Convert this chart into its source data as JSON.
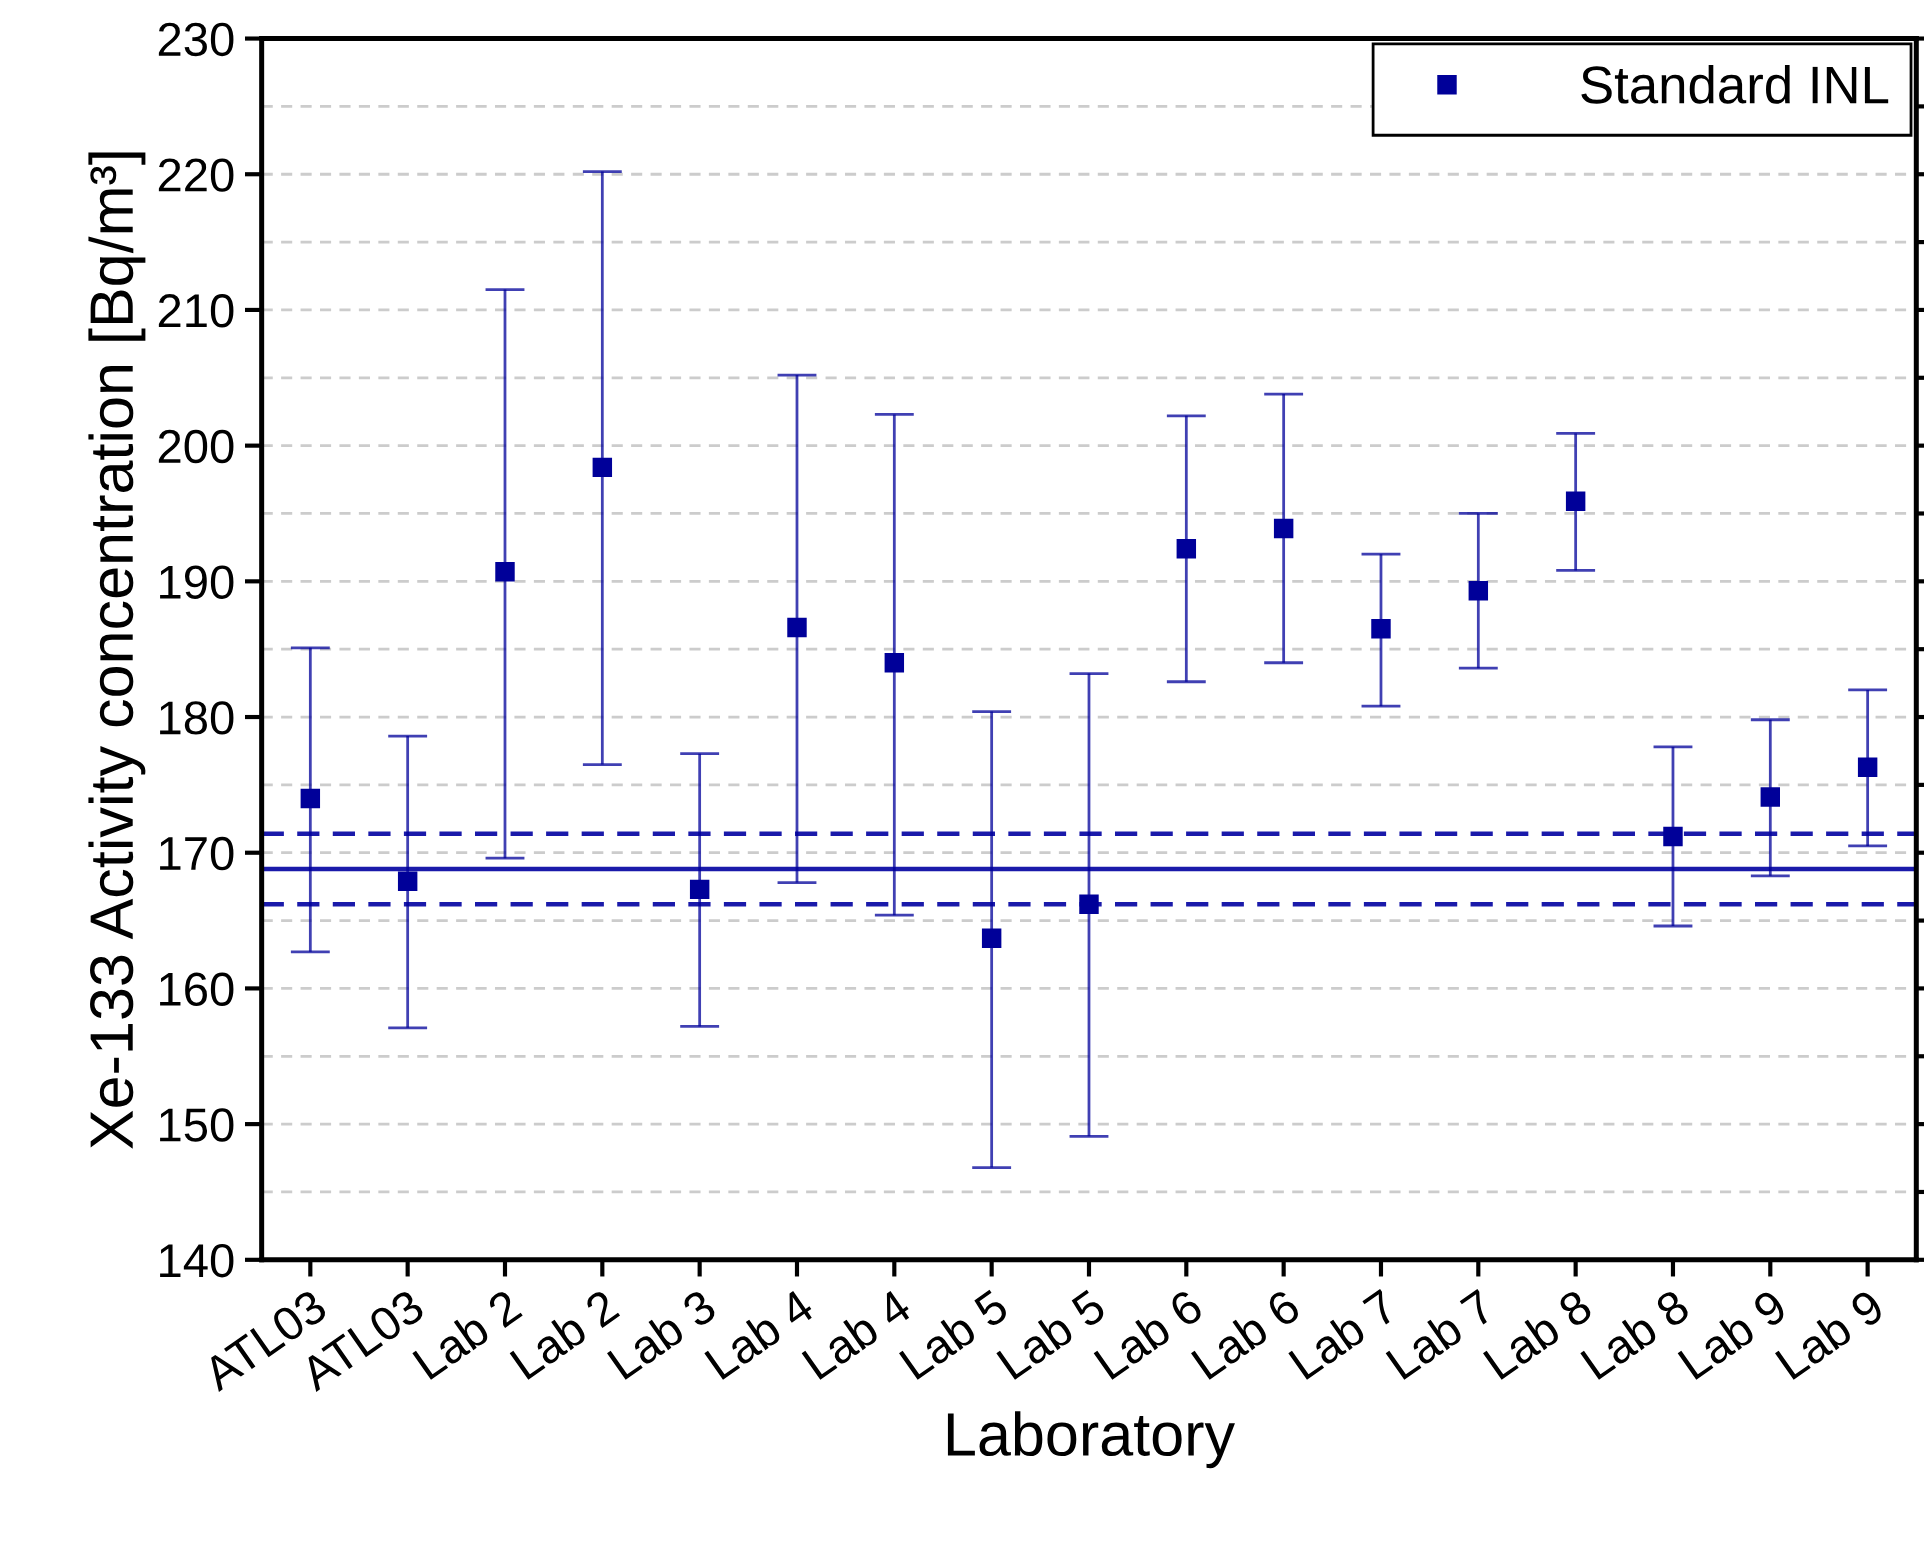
{
  "chart_data": {
    "type": "scatter",
    "xlabel": "Laboratory",
    "ylabel": "Xe-133 Activity concentration [Bq/m³]",
    "categories": [
      "ATL03",
      "ATL03",
      "Lab 2",
      "Lab 2",
      "Lab 3",
      "Lab 4",
      "Lab 4",
      "Lab 5",
      "Lab 5",
      "Lab 6",
      "Lab 6",
      "Lab 7",
      "Lab 7",
      "Lab 8",
      "Lab 8",
      "Lab 9",
      "Lab 9"
    ],
    "series": [
      {
        "name": "Standard INL",
        "color": "#000099",
        "values": [
          174.0,
          167.9,
          190.7,
          198.4,
          167.3,
          186.6,
          184.0,
          163.7,
          166.2,
          192.4,
          193.9,
          186.5,
          189.3,
          195.9,
          171.2,
          174.1,
          176.3
        ],
        "errors": [
          [
            162.7,
            185.1
          ],
          [
            157.1,
            178.6
          ],
          [
            169.6,
            211.5
          ],
          [
            176.5,
            220.2
          ],
          [
            157.2,
            177.3
          ],
          [
            167.8,
            205.2
          ],
          [
            165.4,
            202.3
          ],
          [
            146.8,
            180.4
          ],
          [
            149.1,
            183.2
          ],
          [
            182.6,
            202.2
          ],
          [
            184.0,
            203.8
          ],
          [
            180.8,
            192.0
          ],
          [
            183.6,
            195.0
          ],
          [
            190.8,
            200.9
          ],
          [
            164.6,
            177.8
          ],
          [
            168.3,
            179.8
          ],
          [
            170.5,
            182.0
          ]
        ]
      }
    ],
    "ref_lines": [
      {
        "axis": "y",
        "value": 168.8,
        "color": "#1a1aaa",
        "line_style": "solid"
      },
      {
        "axis": "y",
        "value": 171.4,
        "color": "#1a1aaa",
        "line_style": "dashed"
      },
      {
        "axis": "y",
        "value": 166.2,
        "color": "#1a1aaa",
        "line_style": "dashed"
      }
    ],
    "ylim": [
      140,
      230
    ],
    "yticks": [
      140,
      {
        "value": 145,
        "label": null
      },
      150,
      {
        "value": 155,
        "label": null
      },
      160,
      {
        "value": 165,
        "label": null
      },
      170,
      {
        "value": 175,
        "label": null
      },
      180,
      {
        "value": 185,
        "label": null
      },
      190,
      {
        "value": 195,
        "label": null
      },
      200,
      {
        "value": 205,
        "label": null
      },
      210,
      {
        "value": 215,
        "label": null
      },
      220,
      {
        "value": 225,
        "label": null
      },
      230
    ],
    "grid": "y",
    "legend": "top right",
    "marker": "square"
  }
}
